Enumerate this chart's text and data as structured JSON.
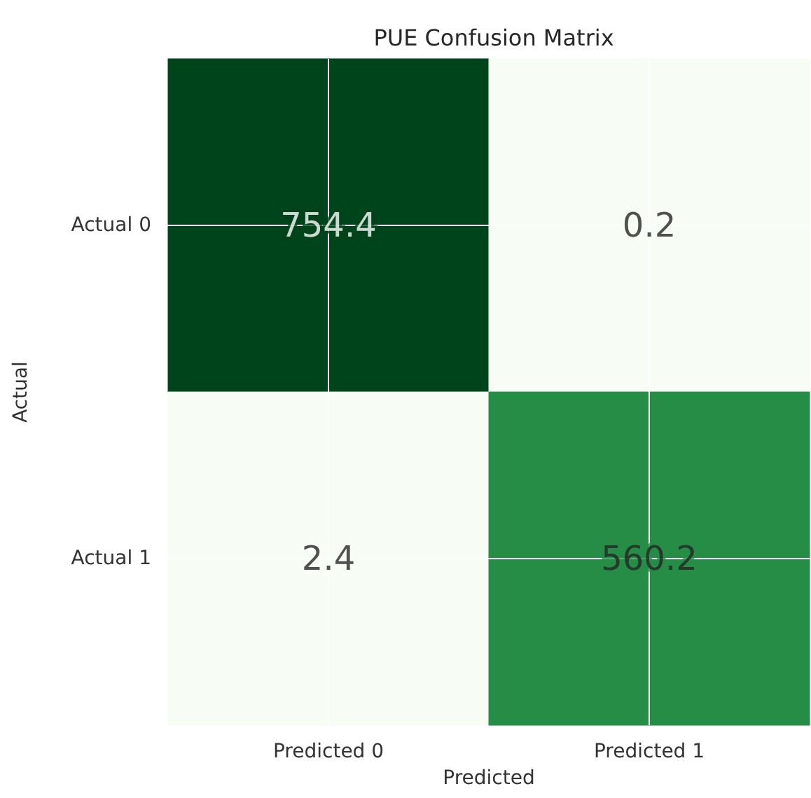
{
  "chart_data": {
    "type": "heatmap",
    "title": "PUE Confusion Matrix",
    "xlabel": "Predicted",
    "ylabel": "Actual",
    "categories": [
      "Predicted 0",
      "Predicted 1"
    ],
    "y_categories": [
      "Actual 0",
      "Actual 1"
    ],
    "cells": [
      [
        754.4,
        0.2
      ],
      [
        2.4,
        560.2
      ]
    ],
    "data_labels": true,
    "grid": true
  }
}
